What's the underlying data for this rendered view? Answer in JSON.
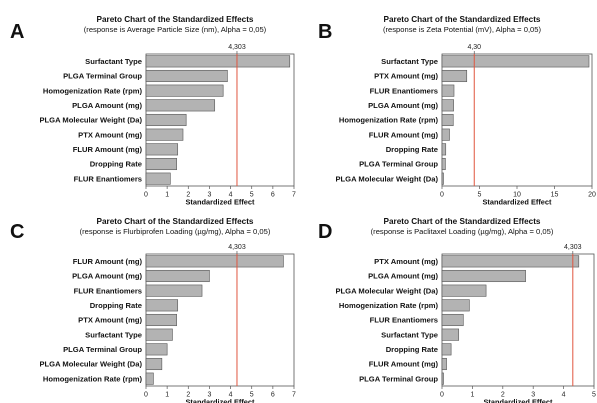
{
  "chart_data": [
    {
      "type": "bar",
      "orientation": "horizontal",
      "panel_label": "A",
      "title": "Pareto Chart of the Standardized Effects",
      "subtitle": "(response is Average Particle Size (nm), Alpha = 0,05)",
      "xlabel": "Standardized Effect",
      "xlim": [
        0,
        7
      ],
      "xticks": [
        "0",
        "1",
        "2",
        "3",
        "4",
        "5",
        "6",
        "7"
      ],
      "reference_line": {
        "value": 4.303,
        "label": "4,303"
      },
      "categories": [
        "Surfactant Type",
        "PLGA Terminal Group",
        "Homogenization Rate (rpm)",
        "PLGA Amount (mg)",
        "PLGA Molecular Weight (Da)",
        "PTX Amount (mg)",
        "FLUR Amount (mg)",
        "Dropping Rate",
        "FLUR Enantiomers"
      ],
      "values": [
        6.8,
        3.85,
        3.65,
        3.25,
        1.9,
        1.75,
        1.5,
        1.45,
        1.15
      ],
      "bar_color": "#b3b3b3",
      "reference_color": "#e0563f"
    },
    {
      "type": "bar",
      "orientation": "horizontal",
      "panel_label": "B",
      "title": "Pareto Chart of the Standardized Effects",
      "subtitle": "(response is Zeta Potential (mV), Alpha = 0,05)",
      "xlabel": "Standardized Effect",
      "xlim": [
        0,
        20
      ],
      "xticks": [
        "0",
        "5",
        "10",
        "15",
        "20"
      ],
      "reference_line": {
        "value": 4.3,
        "label": "4,30"
      },
      "categories": [
        "Surfactant Type",
        "PTX Amount (mg)",
        "FLUR Enantiomers",
        "PLGA Amount (mg)",
        "Homogenization Rate (rpm)",
        "FLUR Amount (mg)",
        "Dropping Rate",
        "PLGA Terminal Group",
        "PLGA Molecular Weight (Da)"
      ],
      "values": [
        19.6,
        3.3,
        1.6,
        1.55,
        1.5,
        1.0,
        0.5,
        0.45,
        0.2
      ],
      "bar_color": "#b3b3b3",
      "reference_color": "#e0563f"
    },
    {
      "type": "bar",
      "orientation": "horizontal",
      "panel_label": "C",
      "title": "Pareto Chart of the Standardized Effects",
      "subtitle": "(response is Flurbiprofen Loading  (µg/mg), Alpha = 0,05)",
      "xlabel": "Standardized Effect",
      "xlim": [
        0,
        7
      ],
      "xticks": [
        "0",
        "1",
        "2",
        "3",
        "4",
        "5",
        "6",
        "7"
      ],
      "reference_line": {
        "value": 4.303,
        "label": "4,303"
      },
      "categories": [
        "FLUR Amount (mg)",
        "PLGA Amount (mg)",
        "FLUR Enantiomers",
        "Dropping Rate",
        "PTX Amount (mg)",
        "Surfactant Type",
        "PLGA Terminal Group",
        "PLGA Molecular Weight (Da)",
        "Homogenization Rate (rpm)"
      ],
      "values": [
        6.5,
        3.0,
        2.65,
        1.5,
        1.45,
        1.25,
        1.0,
        0.75,
        0.35
      ],
      "bar_color": "#b3b3b3",
      "reference_color": "#e0563f"
    },
    {
      "type": "bar",
      "orientation": "horizontal",
      "panel_label": "D",
      "title": "Pareto Chart of the Standardized Effects",
      "subtitle": "(response is Paclitaxel Loading (µg/mg), Alpha = 0,05)",
      "xlabel": "Standardized Effect",
      "xlim": [
        0,
        5
      ],
      "xticks": [
        "0",
        "1",
        "2",
        "3",
        "4",
        "5"
      ],
      "reference_line": {
        "value": 4.303,
        "label": "4,303"
      },
      "categories": [
        "PTX Amount (mg)",
        "PLGA Amount (mg)",
        "PLGA Molecular Weight (Da)",
        "Homogenization Rate (rpm)",
        "FLUR Enantiomers",
        "Surfactant Type",
        "Dropping Rate",
        "FLUR Amount (mg)",
        "PLGA Terminal Group"
      ],
      "values": [
        4.5,
        2.75,
        1.45,
        0.9,
        0.7,
        0.55,
        0.3,
        0.15,
        0.05
      ],
      "bar_color": "#b3b3b3",
      "reference_color": "#e0563f"
    }
  ]
}
